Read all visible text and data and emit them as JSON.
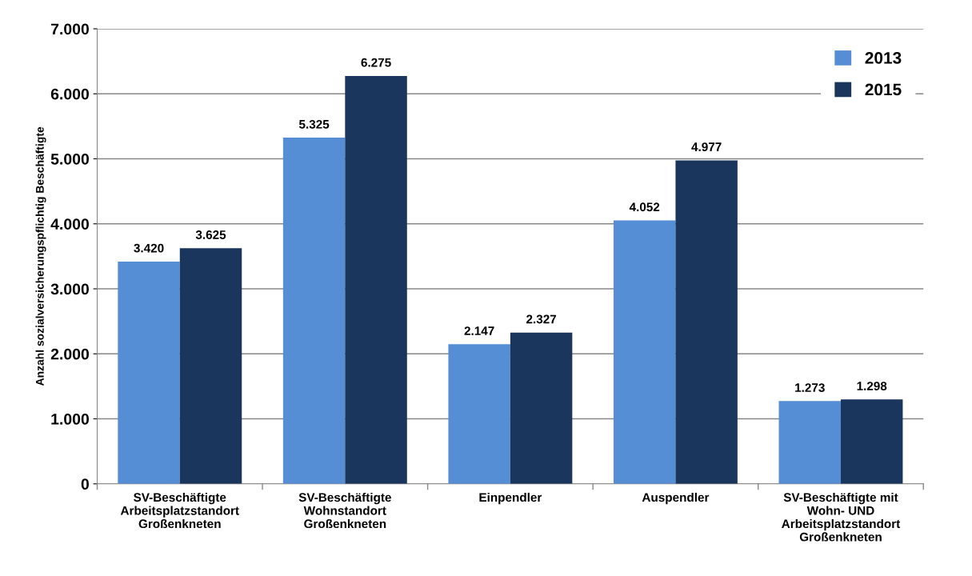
{
  "chart_data": {
    "type": "bar",
    "ylabel": "Anzahl sozialversicherungspflichtig Beschäftigte",
    "categories": [
      "SV-Beschäftigte\nArbeitsplatzstandort\nGroßenkneten",
      "SV-Beschäftigte\nWohnstandort\nGroßenkneten",
      "Einpendler",
      "Auspendler",
      "SV-Beschäftigte mit\nWohn- UND\nArbeitsplatzstandort\nGroßenkneten"
    ],
    "series": [
      {
        "name": "2013",
        "color": "#558ed5",
        "values": [
          3420,
          5325,
          2147,
          4052,
          1273
        ],
        "value_labels": [
          "3.420",
          "5.325",
          "2.147",
          "4.052",
          "1.273"
        ]
      },
      {
        "name": "2015",
        "color": "#1b365d",
        "values": [
          3625,
          6275,
          2327,
          4977,
          1298
        ],
        "value_labels": [
          "3.625",
          "6.275",
          "2.327",
          "4.977",
          "1.298"
        ]
      }
    ],
    "ylim": [
      0,
      7000
    ],
    "yticks": [
      {
        "value": 0,
        "label": "0"
      },
      {
        "value": 1000,
        "label": "1.000"
      },
      {
        "value": 2000,
        "label": "2.000"
      },
      {
        "value": 3000,
        "label": "3.000"
      },
      {
        "value": 4000,
        "label": "4.000"
      },
      {
        "value": 5000,
        "label": "5.000"
      },
      {
        "value": 6000,
        "label": "6.000"
      },
      {
        "value": 7000,
        "label": "7.000"
      }
    ],
    "grid": "y",
    "legend": "top right"
  }
}
